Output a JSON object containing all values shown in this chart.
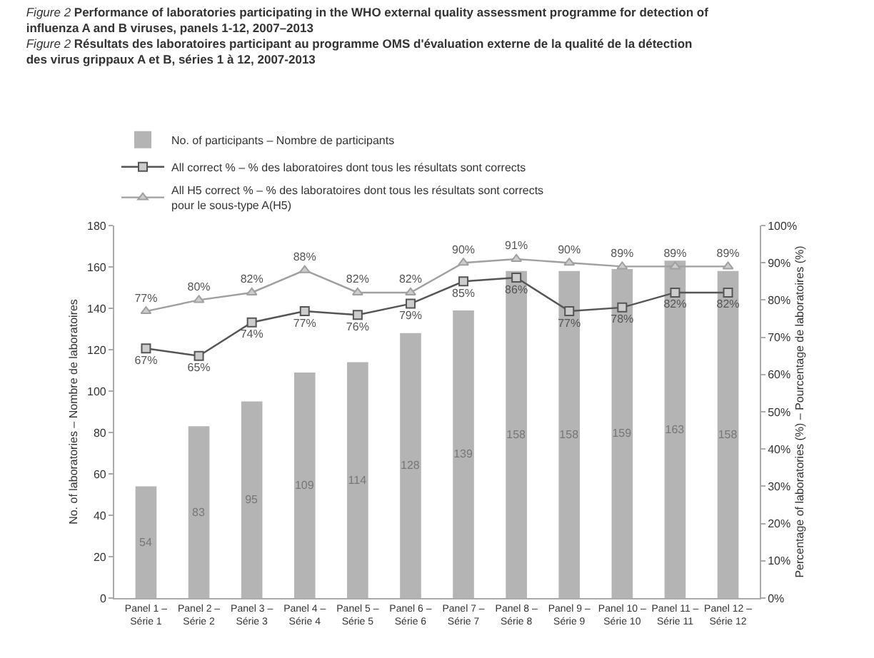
{
  "chart_data": {
    "type": "bar",
    "title": "Figure 2 Performance of laboratories participating in the WHO external quality assessment programme for detection of influenza A and B viruses, panels 1-12, 2007–2013",
    "subtitle": "Figure 2 Résultats des laboratoires participant au programme OMS d'évaluation externe de la qualité de la détection des virus grippaux A et B, séries 1 à 12, 2007-2013",
    "ylabel": "No. of laboratories – Nombre de laboratoires",
    "y2label": "Percentage of laboratories (%) – Pourcentage de laboratoires (%)",
    "categories": [
      "Panel 1 – Série 1",
      "Panel 2 – Série 2",
      "Panel 3 – Série 3",
      "Panel 4 – Série 4",
      "Panel 5 – Série 5",
      "Panel 6 – Série 6",
      "Panel 7 – Série 7",
      "Panel 8 – Série 8",
      "Panel 9 – Série 9",
      "Panel 10 – Série 10",
      "Panel 11 – Série 11",
      "Panel 12 – Série 12"
    ],
    "series": [
      {
        "name": "No. of participants – Nombre de participants",
        "color": "#b4b4b4",
        "values": [
          54,
          83,
          95,
          109,
          114,
          128,
          139,
          158,
          158,
          159,
          163,
          158
        ],
        "value_labels": [
          "54",
          "83",
          "95",
          "109",
          "114",
          "128",
          "139",
          "158",
          "158",
          "159",
          "163",
          "158"
        ]
      },
      {
        "name": "All correct % – % des laboratoires dont tous les résultats sont corrects",
        "type": "line",
        "axis": "y2",
        "color": "#555555",
        "marker": "square",
        "values": [
          67,
          65,
          74,
          77,
          76,
          79,
          85,
          86,
          77,
          78,
          82,
          82
        ],
        "value_labels": [
          "67%",
          "65%",
          "74%",
          "77%",
          "76%",
          "79%",
          "85%",
          "86%",
          "77%",
          "78%",
          "82%",
          "82%"
        ]
      },
      {
        "name": "All H5 correct % – % des laboratoires dont tous les résultats sont corrects pour le sous-type A(H5)",
        "type": "line",
        "axis": "y2",
        "color": "#a0a0a0",
        "marker": "triangle",
        "values": [
          77,
          80,
          82,
          88,
          82,
          82,
          90,
          91,
          90,
          89,
          89,
          89
        ],
        "value_labels": [
          "77%",
          "80%",
          "82%",
          "88%",
          "82%",
          "82%",
          "90%",
          "91%",
          "90%",
          "89%",
          "89%",
          "89%"
        ]
      }
    ],
    "ylim": [
      0,
      180
    ],
    "yticks": [
      0,
      20,
      40,
      60,
      80,
      100,
      120,
      140,
      160,
      180
    ],
    "y2lim": [
      0,
      100
    ],
    "y2ticks": [
      {
        "value": 0,
        "label": "0%"
      },
      {
        "value": 10,
        "label": "10%"
      },
      {
        "value": 20,
        "label": "20%"
      },
      {
        "value": 30,
        "label": "30%"
      },
      {
        "value": 40,
        "label": "40%"
      },
      {
        "value": 50,
        "label": "50%"
      },
      {
        "value": 60,
        "label": "60%"
      },
      {
        "value": 70,
        "label": "70%"
      },
      {
        "value": 80,
        "label": "80%"
      },
      {
        "value": 90,
        "label": "90%"
      },
      {
        "value": 100,
        "label": "100%"
      }
    ],
    "grid": false,
    "legend": "top left"
  }
}
